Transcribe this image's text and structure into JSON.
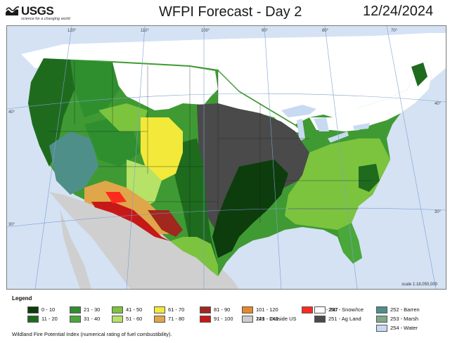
{
  "header": {
    "logo_text": "USGS",
    "logo_tagline": "science for a changing world",
    "title": "WFPI Forecast - Day 2",
    "date": "12/24/2024"
  },
  "map": {
    "longitude_labels": [
      "120°",
      "110°",
      "100°",
      "90°",
      "80°",
      "70°"
    ],
    "latitude_labels_left": [
      "40°",
      "30°"
    ],
    "latitude_labels_right": [
      "40°",
      "30°"
    ],
    "scale": "scale 1:18,050,000"
  },
  "legend": {
    "title": "Legend",
    "items": [
      {
        "label": "0 - 10",
        "color": "#0d3d0d"
      },
      {
        "label": "11 - 20",
        "color": "#1e6b1e"
      },
      {
        "label": "21 - 30",
        "color": "#2f8f2f"
      },
      {
        "label": "31 - 40",
        "color": "#4aa83a"
      },
      {
        "label": "41 - 50",
        "color": "#7cc43e"
      },
      {
        "label": "51 - 60",
        "color": "#b6e267"
      },
      {
        "label": "61 - 70",
        "color": "#f2e93a"
      },
      {
        "label": "71 - 80",
        "color": "#e0a64a"
      },
      {
        "label": "81 - 90",
        "color": "#a0281e"
      },
      {
        "label": "91 - 100",
        "color": "#c71818"
      },
      {
        "label": "101 - 120",
        "color": "#e8882a"
      },
      {
        "label": "121 - 140",
        "color": "#e03ae0"
      },
      {
        "label": "141 - 247",
        "color": "#ff2a1e"
      },
      {
        "label": "249 - Outside US",
        "color": "#cccccc"
      },
      {
        "label": "250 - Snow/Ice",
        "color": "#ffffff"
      },
      {
        "label": "251 - Ag Land",
        "color": "#4a4a4a"
      },
      {
        "label": "252 - Barren",
        "color": "#4f8f8a"
      },
      {
        "label": "253 - Marsh",
        "color": "#7fa98a"
      },
      {
        "label": "254 - Water",
        "color": "#c8daf2"
      }
    ],
    "note": "Wildland Fire Potential Index (numerical rating of fuel combustibility)."
  }
}
